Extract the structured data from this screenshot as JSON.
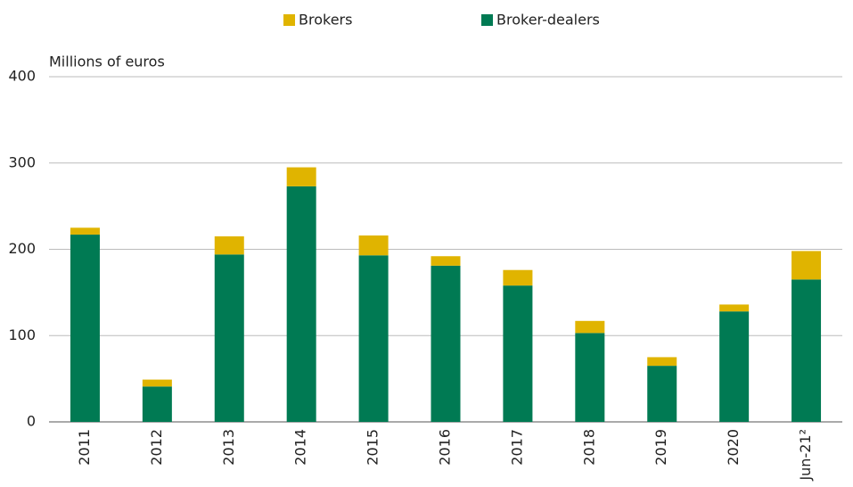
{
  "chart_data": {
    "type": "stacked_bar",
    "y_label": "Millions of euros",
    "categories": [
      "2011",
      "2012",
      "2013",
      "2014",
      "2015",
      "2016",
      "2017",
      "2018",
      "2019",
      "2020",
      "Jun-21²"
    ],
    "series": [
      {
        "name": "Brokers",
        "color": "#e0b400",
        "values": [
          8,
          8,
          21,
          22,
          23,
          11,
          18,
          14,
          10,
          8,
          33
        ]
      },
      {
        "name": "Broker-dealers",
        "color": "#007a53",
        "values": [
          217,
          41,
          194,
          273,
          193,
          181,
          158,
          103,
          65,
          128,
          165
        ]
      }
    ],
    "ylim": [
      0,
      400
    ],
    "yticks": [
      0,
      100,
      200,
      300,
      400
    ],
    "grid": true,
    "legend": "top"
  }
}
